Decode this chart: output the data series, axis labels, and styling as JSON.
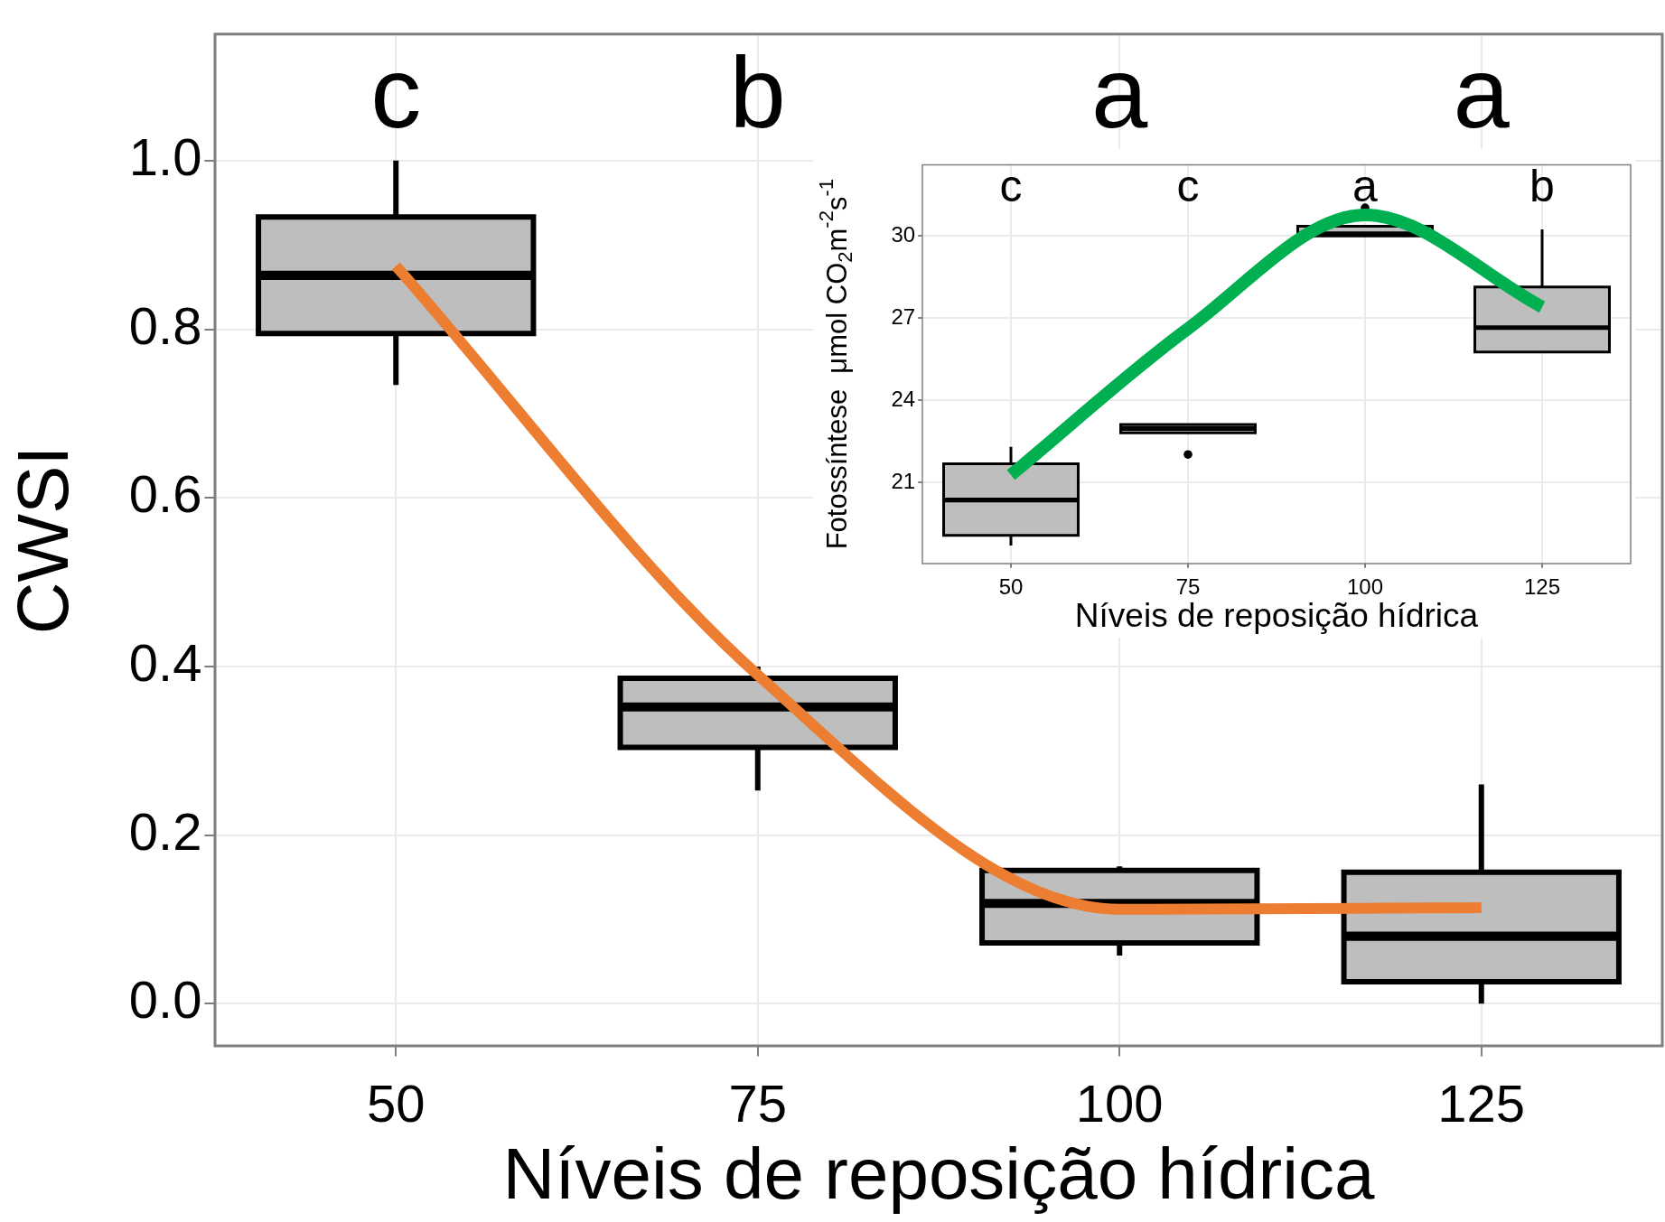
{
  "chart_data": [
    {
      "type": "box",
      "xlabel": "Níveis de reposição hídrica",
      "ylabel": "CWSI",
      "ylim": [
        -0.05,
        1.15
      ],
      "yticks": [
        {
          "value": 0,
          "label": "0.0"
        },
        0.2,
        0.4,
        0.6,
        0.8,
        {
          "value": 1,
          "label": "1.0"
        }
      ],
      "grid": true,
      "categories": [
        "50",
        "75",
        "100",
        "125"
      ],
      "color": "#bebebe",
      "boxes": [
        {
          "low": 0.734,
          "q1": 0.795,
          "median": 0.864,
          "q3": 0.933,
          "high": 1.0
        },
        {
          "low": 0.253,
          "q1": 0.304,
          "median": 0.352,
          "q3": 0.386,
          "high": 0.4
        },
        {
          "low": 0.057,
          "q1": 0.072,
          "median": 0.119,
          "q3": 0.158,
          "high": 0.163
        },
        {
          "low": 0.0,
          "q1": 0.026,
          "median": 0.08,
          "q3": 0.156,
          "high": 0.26
        }
      ],
      "series": [
        {
          "type": "line",
          "color": "#ed7d31",
          "values": [
            0.875,
            0.39,
            0.112,
            0.114
          ]
        }
      ],
      "annotations": [
        "c",
        "b",
        "a",
        "a"
      ]
    },
    {
      "type": "box",
      "xlabel": "Níveis de reposição hídrica",
      "ylabel": "Fotossíntese  μmol CO$_{2}$m$^{-2}$s$^{-1}$",
      "ylim": [
        18.05,
        32.6
      ],
      "yticks": [
        21,
        24,
        27,
        30
      ],
      "grid": true,
      "categories": [
        "50",
        "75",
        "100",
        "125"
      ],
      "color": "#bebebe",
      "boxes": [
        {
          "low": 18.71,
          "q1": 19.08,
          "median": 20.37,
          "q3": 21.69,
          "high": 22.31
        },
        {
          "low": 22.82,
          "q1": 22.82,
          "median": 22.98,
          "q3": 23.12,
          "high": 23.12,
          "outliers": [
            22.03
          ]
        },
        {
          "low": 30.0,
          "q1": 30.0,
          "median": 30.08,
          "q3": 30.36,
          "high": 30.36,
          "outliers": [
            31.03
          ]
        },
        {
          "low": 25.77,
          "q1": 25.77,
          "median": 26.66,
          "q3": 28.14,
          "high": 30.24
        }
      ],
      "series": [
        {
          "type": "line",
          "color": "#00b050",
          "values": [
            21.28,
            26.62,
            30.77,
            27.41
          ]
        }
      ],
      "annotations": [
        "c",
        "c",
        "a",
        "b"
      ]
    }
  ]
}
